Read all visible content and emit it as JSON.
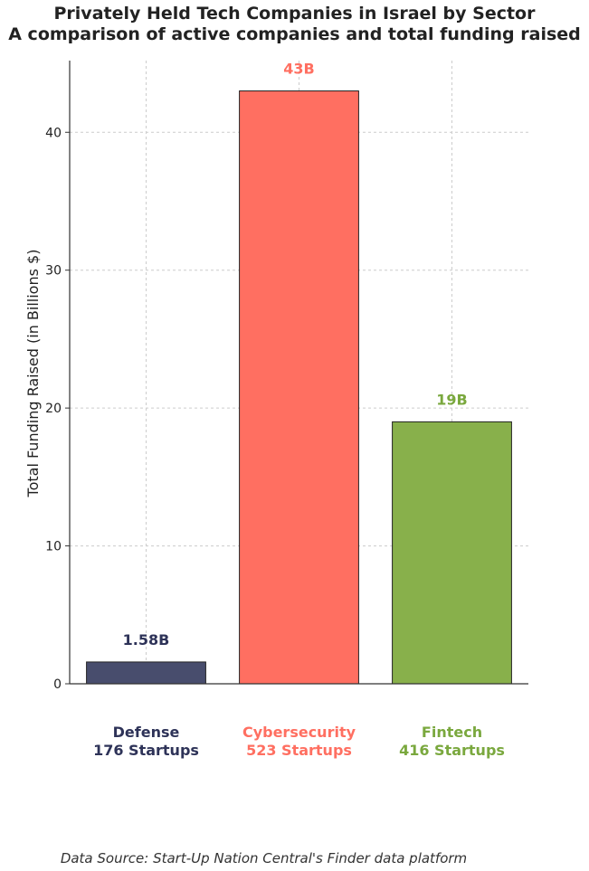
{
  "title_line1": "Privately Held Tech Companies in Israel by Sector",
  "title_line2": "A comparison of active companies and total funding raised",
  "source": "Data Source: Start-Up Nation Central's Finder data platform",
  "chart_data": {
    "type": "bar",
    "categories": [
      "Defense",
      "Cybersecurity",
      "Fintech"
    ],
    "category_sublabels": [
      "176 Startups",
      "523 Startups",
      "416 Startups"
    ],
    "values": [
      1.58,
      43,
      19
    ],
    "data_labels": [
      "1.58B",
      "43B",
      "19B"
    ],
    "colors": [
      "#484d6d",
      "#ff6f61",
      "#88b04b"
    ],
    "label_colors": [
      "#2e3358",
      "#ff6f61",
      "#7aa83e"
    ],
    "ylabel": "Total Funding Raised (in Billions $)",
    "xlabel": "",
    "ylim": [
      0,
      45.2
    ],
    "yticks": [
      0,
      10,
      20,
      30,
      40
    ],
    "grid": true
  }
}
